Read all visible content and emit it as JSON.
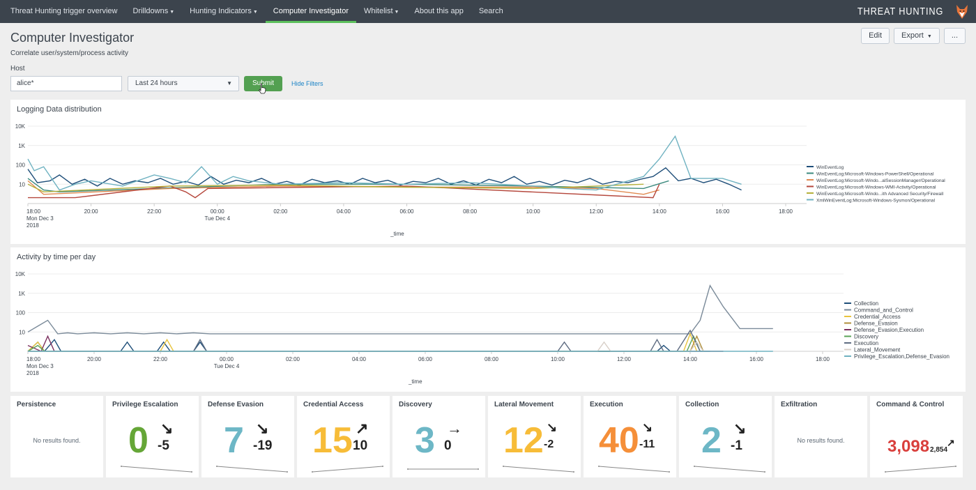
{
  "nav": {
    "items": [
      {
        "label": "Threat Hunting trigger overview",
        "caret": false
      },
      {
        "label": "Drilldowns",
        "caret": true
      },
      {
        "label": "Hunting Indicators",
        "caret": true
      },
      {
        "label": "Computer Investigator",
        "caret": false,
        "active": true
      },
      {
        "label": "Whitelist",
        "caret": true
      },
      {
        "label": "About this app",
        "caret": false
      },
      {
        "label": "Search",
        "caret": false
      }
    ],
    "brand": "THREAT HUNTING"
  },
  "page": {
    "title": "Computer Investigator",
    "subtitle": "Correlate user/system/process activity",
    "buttons": {
      "edit": "Edit",
      "export": "Export",
      "more": "..."
    }
  },
  "filters": {
    "host_label": "Host",
    "host_value": "alice*",
    "time_value": "Last 24 hours",
    "submit": "Submit",
    "hide": "Hide Filters"
  },
  "chart_data": [
    {
      "type": "line",
      "title": "Logging Data distribution",
      "xlabel": "_time",
      "ylabel": "",
      "yscale": "log",
      "ylim": [
        1,
        10000
      ],
      "y_ticks": [
        "10",
        "100",
        "1K",
        "10K"
      ],
      "x_ticks": [
        "18:00",
        "20:00",
        "22:00",
        "00:00",
        "02:00",
        "04:00",
        "06:00",
        "08:00",
        "10:00",
        "12:00",
        "14:00",
        "16:00",
        "18:00"
      ],
      "x_tick_sub": {
        "18:00": [
          "Mon Dec 3",
          "2018"
        ],
        "00:00": [
          "Tue Dec 4"
        ]
      },
      "x_hours": [
        0,
        2,
        4,
        6,
        8,
        10,
        12,
        14,
        16,
        18,
        20,
        22,
        24
      ],
      "legend": "right",
      "series": [
        {
          "name": "WinEventLog",
          "color": "#1e4e79",
          "x": [
            0,
            0.3,
            0.7,
            1.0,
            1.4,
            1.8,
            2.2,
            2.6,
            3.0,
            3.4,
            3.8,
            4.2,
            4.6,
            5.0,
            5.4,
            5.8,
            6.2,
            6.6,
            7.0,
            7.4,
            7.8,
            8.2,
            8.6,
            9.0,
            9.4,
            9.8,
            10.2,
            10.6,
            11.0,
            11.4,
            11.8,
            12.2,
            12.6,
            13.0,
            13.4,
            13.8,
            14.2,
            14.6,
            15.0,
            15.4,
            15.8,
            16.2,
            16.6,
            17.0,
            17.4,
            17.8,
            18.2,
            18.6,
            19.0,
            19.4,
            19.8,
            20.2,
            20.6,
            21.0,
            21.4,
            21.8,
            22.2,
            22.6
          ],
          "y": [
            60,
            12,
            15,
            30,
            10,
            18,
            8,
            20,
            10,
            15,
            12,
            20,
            10,
            14,
            9,
            25,
            10,
            16,
            12,
            20,
            10,
            14,
            9,
            18,
            12,
            15,
            10,
            20,
            12,
            16,
            9,
            14,
            12,
            20,
            10,
            15,
            9,
            18,
            12,
            25,
            10,
            14,
            9,
            16,
            12,
            20,
            10,
            14,
            12,
            18,
            25,
            70,
            15,
            20,
            12,
            18,
            10,
            5
          ]
        },
        {
          "name": "WinEventLog:Microsoft-Windows-PowerShell/Operational",
          "color": "#3b8a7e",
          "x": [
            0,
            0.5,
            1.0,
            4.0,
            8.0,
            12.0,
            16.0,
            19.5,
            20.3
          ],
          "y": [
            20,
            5,
            4,
            6,
            10,
            10,
            8,
            6,
            15
          ]
        },
        {
          "name": "WinEventLog:Microsoft-Windo...alSessionManager/Operational",
          "color": "#e0894f",
          "x": [
            0,
            0.5,
            4.5,
            8.0,
            12.0,
            16.0,
            18.0,
            19.5,
            20.0
          ],
          "y": [
            15,
            3,
            6,
            8,
            7,
            7,
            6,
            3,
            5
          ]
        },
        {
          "name": "WinEventLog:Microsoft-Windows-WMI-Activity/Operational",
          "color": "#b5473c",
          "x": [
            0,
            0.5,
            1.5,
            4.5,
            5.0,
            5.3,
            5.7,
            12.0,
            19.8,
            20.0
          ],
          "y": [
            2,
            2,
            2,
            8,
            4,
            2,
            6,
            8,
            2,
            10
          ]
        },
        {
          "name": "WinEventLog:Microsoft-Windo...ith Advanced Security/Firewall",
          "color": "#b5b03a",
          "x": [
            0,
            0.5,
            4.5,
            8.0,
            12.0,
            16.0,
            19.5
          ],
          "y": [
            10,
            4,
            8,
            9,
            7,
            6,
            10
          ]
        },
        {
          "name": "XmlWinEventLog:Microsoft-Windows-Sysmon/Operational",
          "color": "#6fb2c1",
          "x": [
            0,
            0.2,
            0.5,
            1.0,
            1.5,
            2.0,
            3.0,
            4.0,
            4.5,
            5.0,
            5.5,
            6.0,
            6.5,
            7.0,
            8.0,
            10.0,
            12.0,
            14.0,
            16.0,
            17.0,
            18.0,
            19.5,
            20.0,
            20.5,
            21.0,
            21.5,
            22.0,
            22.6
          ],
          "y": [
            200,
            50,
            80,
            5,
            10,
            15,
            8,
            30,
            20,
            12,
            80,
            10,
            25,
            15,
            10,
            12,
            10,
            12,
            8,
            6,
            5,
            25,
            200,
            3000,
            20,
            20,
            20,
            10
          ]
        }
      ]
    },
    {
      "type": "line",
      "title": "Activity by time per day",
      "xlabel": "_time",
      "ylabel": "",
      "yscale": "log",
      "ylim": [
        1,
        10000
      ],
      "y_ticks": [
        "10",
        "100",
        "1K",
        "10K"
      ],
      "x_ticks": [
        "18:00",
        "20:00",
        "22:00",
        "00:00",
        "02:00",
        "04:00",
        "06:00",
        "08:00",
        "10:00",
        "12:00",
        "14:00",
        "16:00",
        "18:00"
      ],
      "x_tick_sub": {
        "18:00": [
          "Mon Dec 3",
          "2018"
        ],
        "00:00": [
          "Tue Dec 4"
        ]
      },
      "x_hours": [
        0,
        2,
        4,
        6,
        8,
        10,
        12,
        14,
        16,
        18,
        20,
        22,
        24
      ],
      "legend": "right",
      "series": [
        {
          "name": "Collection",
          "color": "#1e4e79",
          "x": [
            0,
            0.3,
            0.5,
            0.8,
            1.0,
            1.3,
            2.8,
            3.0,
            3.2,
            3.9,
            4.1,
            4.3,
            5.0,
            5.2,
            5.4,
            19.0,
            19.2,
            19.4
          ],
          "y": [
            1,
            3,
            1,
            4,
            1,
            1,
            1,
            3,
            1,
            1,
            3,
            1,
            1,
            3,
            1,
            1,
            2,
            1
          ]
        },
        {
          "name": "Command_and_Control",
          "color": "#7a8a99",
          "x": [
            0,
            0.3,
            0.6,
            0.9,
            1.2,
            1.5,
            2.0,
            2.5,
            3.0,
            3.5,
            4.0,
            4.5,
            5.0,
            5.5,
            6.0,
            8.0,
            10.0,
            12.0,
            14.0,
            16.0,
            17.0,
            18.0,
            19.0,
            19.5,
            20.0,
            20.3,
            20.6,
            21.0,
            21.5,
            22.0,
            22.5
          ],
          "y": [
            10,
            20,
            40,
            8,
            9,
            8,
            9,
            8,
            9,
            8,
            9,
            8,
            9,
            8,
            8,
            8,
            8,
            8,
            8,
            8,
            8,
            8,
            8,
            8,
            8,
            40,
            2500,
            200,
            15,
            15,
            15
          ]
        },
        {
          "name": "Credential_Access",
          "color": "#e8c43e",
          "x": [
            0,
            0.3,
            0.5,
            4.0,
            4.2,
            4.4,
            19.8,
            20.0,
            20.2
          ],
          "y": [
            1,
            3,
            1,
            1,
            4,
            1,
            1,
            8,
            1
          ]
        },
        {
          "name": "Defense_Evasion",
          "color": "#b08f3b",
          "x": [
            0,
            0.5,
            20.0,
            20.2,
            20.4
          ],
          "y": [
            1,
            1,
            1,
            6,
            1
          ]
        },
        {
          "name": "Defense_Evasion,Execution",
          "color": "#7b2f5e",
          "x": [
            0,
            0.4,
            0.6,
            0.8,
            21.0
          ],
          "y": [
            2,
            1,
            6,
            1,
            1
          ]
        },
        {
          "name": "Discovery",
          "color": "#5aa357",
          "x": [
            0,
            0.3,
            0.5,
            19.9,
            20.1,
            20.3
          ],
          "y": [
            1,
            2,
            1,
            1,
            6,
            1
          ]
        },
        {
          "name": "Execution",
          "color": "#5e6c82",
          "x": [
            0,
            5.0,
            5.2,
            5.4,
            16.0,
            16.2,
            16.4,
            18.8,
            19.0,
            19.2,
            19.6,
            20.0,
            20.3,
            20.6
          ],
          "y": [
            1,
            1,
            4,
            1,
            1,
            3,
            1,
            1,
            4,
            1,
            1,
            12,
            1,
            1
          ]
        },
        {
          "name": "Lateral_Movement",
          "color": "#d8cfc8",
          "x": [
            0,
            17.2,
            17.4,
            17.6,
            20.0,
            20.2,
            20.4
          ],
          "y": [
            1,
            1,
            3,
            1,
            1,
            3,
            1
          ]
        },
        {
          "name": "Privilege_Escalation,Defense_Evasion",
          "color": "#6fb2c1",
          "x": [
            0,
            22.5
          ],
          "y": [
            1,
            1
          ]
        }
      ]
    }
  ],
  "single_values": [
    {
      "title": "Persistence",
      "empty": "No results found."
    },
    {
      "title": "Privilege Escalation",
      "value": "0",
      "delta": "-5",
      "arrow": "↘",
      "color": "#65a637",
      "trend": "down"
    },
    {
      "title": "Defense Evasion",
      "value": "7",
      "delta": "-19",
      "arrow": "↘",
      "color": "#6db7c6",
      "trend": "down"
    },
    {
      "title": "Credential Access",
      "value": "15",
      "delta": "10",
      "arrow": "↗",
      "color": "#f7bc38",
      "trend": "up"
    },
    {
      "title": "Discovery",
      "value": "3",
      "delta": "0",
      "arrow": "→",
      "color": "#6db7c6",
      "trend": "flat"
    },
    {
      "title": "Lateral Movement",
      "value": "12",
      "delta": "-2",
      "arrow": "↘",
      "color": "#f7bc38",
      "trend": "down",
      "small": true
    },
    {
      "title": "Execution",
      "value": "40",
      "delta": "-11",
      "arrow": "↘",
      "color": "#f58f39",
      "trend": "down",
      "small": true
    },
    {
      "title": "Collection",
      "value": "2",
      "delta": "-1",
      "arrow": "↘",
      "color": "#6db7c6",
      "trend": "down"
    },
    {
      "title": "Exfiltration",
      "empty": "No results found."
    },
    {
      "title": "Command & Control",
      "value": "3,098",
      "delta": "2,854",
      "arrow": "↗",
      "color": "#d93f3c",
      "trend": "up",
      "tiny": true
    }
  ],
  "colors": {
    "nav_bg": "#3c444d",
    "accent": "#5cc05c",
    "submit": "#53a051",
    "link": "#1a83c6"
  }
}
